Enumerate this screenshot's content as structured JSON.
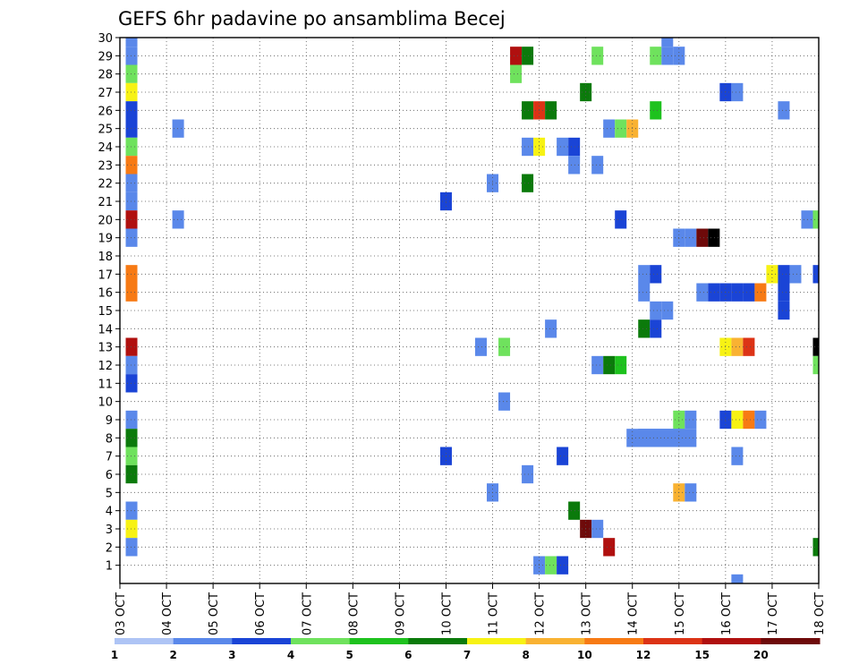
{
  "chart_data": {
    "type": "heatmap",
    "title": "GEFS 6hr padavine po ansamblima Becej",
    "xlabel": "",
    "ylabel": "",
    "x_ticks": [
      "03 OCT",
      "04 OCT",
      "05 OCT",
      "06 OCT",
      "07 OCT",
      "08 OCT",
      "09 OCT",
      "10 OCT",
      "11 OCT",
      "12 OCT",
      "13 OCT",
      "14 OCT",
      "15 OCT",
      "16 OCT",
      "17 OCT",
      "18 OCT"
    ],
    "x_range_steps": [
      0,
      60
    ],
    "steps_per_day": 4,
    "y_ticks": [
      1,
      2,
      3,
      4,
      5,
      6,
      7,
      8,
      9,
      10,
      11,
      12,
      13,
      14,
      15,
      16,
      17,
      18,
      19,
      20,
      21,
      22,
      23,
      24,
      25,
      26,
      27,
      28,
      29,
      30
    ],
    "y_range": [
      0,
      30
    ],
    "grid": true,
    "legend": {
      "placement": "bottom",
      "labels": [
        "1",
        "2",
        "3",
        "4",
        "5",
        "6",
        "7",
        "8",
        "10",
        "12",
        "15",
        "20"
      ],
      "colors": [
        "#aec4f5",
        "#5a88ea",
        "#1a44d6",
        "#6fe25d",
        "#1ec21e",
        "#0b7a0b",
        "#f7f214",
        "#f9b232",
        "#f77a14",
        "#dc3316",
        "#b0100f",
        "#6e0a0a"
      ]
    },
    "cells": [
      [
        1,
        30,
        1
      ],
      [
        1,
        29,
        1
      ],
      [
        1,
        28,
        3
      ],
      [
        1,
        27,
        6
      ],
      [
        1,
        26,
        2
      ],
      [
        1,
        25,
        2
      ],
      [
        1,
        24,
        3
      ],
      [
        1,
        23,
        8
      ],
      [
        1,
        22,
        1
      ],
      [
        1,
        21,
        1
      ],
      [
        1,
        20,
        10
      ],
      [
        1,
        19,
        1
      ],
      [
        1,
        17,
        8
      ],
      [
        1,
        16,
        8
      ],
      [
        1,
        13,
        10
      ],
      [
        1,
        12,
        1
      ],
      [
        1,
        11,
        2
      ],
      [
        1,
        9,
        1
      ],
      [
        1,
        8,
        5
      ],
      [
        1,
        7,
        3
      ],
      [
        1,
        6,
        5
      ],
      [
        1,
        4,
        1
      ],
      [
        1,
        3,
        6
      ],
      [
        1,
        2,
        1
      ],
      [
        5,
        25,
        1
      ],
      [
        5,
        20,
        1
      ],
      [
        28,
        21,
        2
      ],
      [
        28,
        7,
        2
      ],
      [
        31,
        13,
        1
      ],
      [
        32,
        22,
        1
      ],
      [
        32,
        5,
        1
      ],
      [
        33,
        13,
        3
      ],
      [
        33,
        10,
        1
      ],
      [
        34,
        29,
        10
      ],
      [
        34,
        28,
        3
      ],
      [
        35,
        29,
        5
      ],
      [
        35,
        26,
        5
      ],
      [
        35,
        24,
        1
      ],
      [
        35,
        22,
        5
      ],
      [
        35,
        6,
        1
      ],
      [
        36,
        26,
        9
      ],
      [
        36,
        24,
        6
      ],
      [
        36,
        1,
        1
      ],
      [
        37,
        26,
        5
      ],
      [
        37,
        1,
        3
      ],
      [
        37,
        14,
        1
      ],
      [
        38,
        24,
        1
      ],
      [
        38,
        7,
        2
      ],
      [
        38,
        1,
        2
      ],
      [
        39,
        24,
        2
      ],
      [
        39,
        23,
        1
      ],
      [
        39,
        4,
        5
      ],
      [
        40,
        27,
        5
      ],
      [
        40,
        3,
        11
      ],
      [
        41,
        29,
        3
      ],
      [
        41,
        23,
        1
      ],
      [
        41,
        12,
        1
      ],
      [
        41,
        3,
        1
      ],
      [
        42,
        25,
        1
      ],
      [
        42,
        12,
        5
      ],
      [
        42,
        2,
        10
      ],
      [
        43,
        25,
        3
      ],
      [
        43,
        12,
        4
      ],
      [
        43,
        20,
        2
      ],
      [
        44,
        25,
        7
      ],
      [
        45,
        17,
        1
      ],
      [
        45,
        16,
        1
      ],
      [
        45,
        14,
        5
      ],
      [
        46,
        17,
        2
      ],
      [
        46,
        14,
        2
      ],
      [
        46,
        26,
        4
      ],
      [
        46,
        29,
        3
      ],
      [
        46,
        15,
        1
      ],
      [
        47,
        15,
        1
      ],
      [
        47,
        30,
        1
      ],
      [
        47,
        29,
        1
      ],
      [
        48,
        29,
        1
      ],
      [
        48,
        19,
        1
      ],
      [
        49,
        19,
        1
      ],
      [
        48,
        9,
        3
      ],
      [
        49,
        9,
        1
      ],
      [
        48,
        5,
        7
      ],
      [
        49,
        5,
        1
      ],
      [
        50,
        19,
        11
      ],
      [
        50,
        16,
        1
      ],
      [
        51,
        19,
        12
      ],
      [
        51,
        16,
        2
      ],
      [
        52,
        16,
        2
      ],
      [
        53,
        16,
        2
      ],
      [
        54,
        16,
        2
      ],
      [
        52,
        27,
        2
      ],
      [
        53,
        27,
        1
      ],
      [
        52,
        13,
        6
      ],
      [
        53,
        13,
        7
      ],
      [
        54,
        13,
        9
      ],
      [
        52,
        9,
        2
      ],
      [
        53,
        9,
        6
      ],
      [
        54,
        9,
        8
      ],
      [
        55,
        9,
        1
      ],
      [
        53,
        7,
        1
      ],
      [
        53,
        0,
        1
      ],
      [
        55,
        16,
        8
      ],
      [
        56,
        17,
        6
      ],
      [
        57,
        17,
        2
      ],
      [
        57,
        16,
        2
      ],
      [
        57,
        15,
        2
      ],
      [
        58,
        17,
        1
      ],
      [
        57,
        26,
        1
      ],
      [
        59,
        20,
        1
      ],
      [
        60,
        20,
        3
      ],
      [
        60,
        13,
        12
      ],
      [
        60,
        12,
        3
      ],
      [
        60,
        17,
        2
      ],
      [
        60,
        2,
        5
      ]
    ],
    "ranges": [
      [
        45,
        49,
        8,
        1
      ],
      [
        44,
        48,
        8,
        1
      ]
    ]
  }
}
